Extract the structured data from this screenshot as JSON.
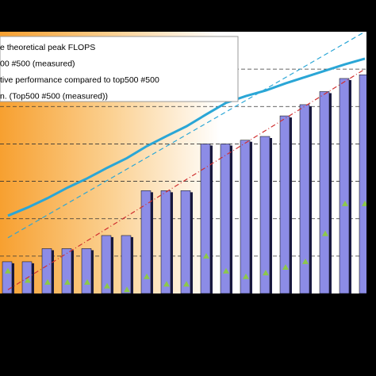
{
  "chart_data": {
    "type": "bar",
    "categories": [
      null,
      null,
      null,
      null,
      null,
      null,
      null,
      null,
      null,
      null,
      null,
      null,
      null,
      null,
      null,
      null,
      null,
      null,
      null
    ],
    "ylim": [
      0,
      7
    ],
    "yticks": [
      1,
      2,
      3,
      4,
      5,
      6
    ],
    "grid": true,
    "series": [
      {
        "name": "tive performance compared to top500 #500",
        "type": "bar",
        "color": "#8c8ce6",
        "values": [
          0.85,
          0.85,
          1.2,
          1.2,
          1.2,
          1.55,
          1.55,
          2.75,
          2.75,
          2.75,
          4.0,
          4.0,
          4.1,
          4.2,
          4.75,
          5.05,
          5.4,
          5.75,
          5.85
        ]
      },
      {
        "name": "00 #500 (measured)",
        "type": "marker",
        "color": "#8cc84b",
        "values": [
          0.6,
          0.35,
          0.3,
          0.3,
          0.3,
          0.2,
          0.1,
          0.45,
          0.25,
          0.25,
          1.0,
          0.6,
          0.45,
          0.55,
          0.7,
          0.85,
          1.6,
          2.4,
          2.4
        ]
      },
      {
        "name": "e theoretical peak FLOPS",
        "type": "line",
        "color": "#2aa6d6",
        "values": [
          2.08,
          2.3,
          2.55,
          2.83,
          3.08,
          3.36,
          3.62,
          3.94,
          4.21,
          4.47,
          4.79,
          5.1,
          5.28,
          5.43,
          5.62,
          5.79,
          5.96,
          6.13,
          6.28
        ]
      },
      {
        "name": "n. (Top500 #500 (measured))",
        "type": "trend",
        "color": "#d03030",
        "values": [
          0.1,
          null,
          null,
          null,
          null,
          null,
          null,
          null,
          null,
          null,
          null,
          null,
          null,
          null,
          null,
          null,
          null,
          null,
          6.0
        ]
      },
      {
        "type": "trend",
        "color": "#2aa6d6",
        "values": [
          1.49,
          null,
          null,
          null,
          null,
          null,
          null,
          null,
          null,
          null,
          null,
          null,
          null,
          null,
          null,
          null,
          null,
          null,
          7.0
        ]
      }
    ]
  }
}
